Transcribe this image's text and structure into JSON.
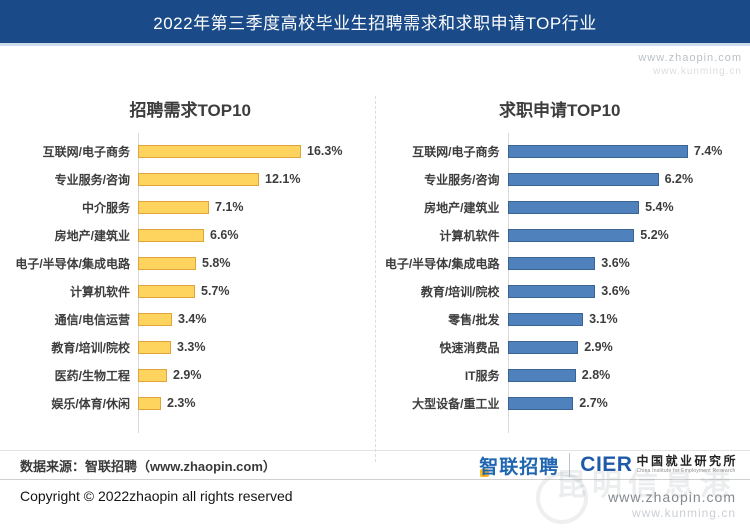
{
  "banner": {
    "title": "2022年第三季度高校毕业生招聘需求和求职申请TOP行业"
  },
  "chart_data": [
    {
      "type": "bar",
      "orientation": "horizontal",
      "title": "招聘需求TOP10",
      "categories": [
        "互联网/电子商务",
        "专业服务/咨询",
        "中介服务",
        "房地产/建筑业",
        "电子/半导体/集成电路",
        "计算机软件",
        "通信/电信运营",
        "教育/培训/院校",
        "医药/生物工程",
        "娱乐/体育/休闲"
      ],
      "values": [
        16.3,
        12.1,
        7.1,
        6.6,
        5.8,
        5.7,
        3.4,
        3.3,
        2.9,
        2.3
      ],
      "value_labels": [
        "16.3%",
        "12.1%",
        "7.1%",
        "6.6%",
        "5.8%",
        "5.7%",
        "3.4%",
        "3.3%",
        "2.9%",
        "2.3%"
      ],
      "unit": "%",
      "xlim": [
        0,
        17.5
      ],
      "grid": "off",
      "legend": "none",
      "bar_fill": "#FFD45E",
      "bar_border": "#DFA43C"
    },
    {
      "type": "bar",
      "orientation": "horizontal",
      "title": "求职申请TOP10",
      "categories": [
        "互联网/电子商务",
        "专业服务/咨询",
        "房地产/建筑业",
        "计算机软件",
        "电子/半导体/集成电路",
        "教育/培训/院校",
        "零售/批发",
        "快速消费品",
        "IT服务",
        "大型设备/重工业"
      ],
      "values": [
        7.4,
        6.2,
        5.4,
        5.2,
        3.6,
        3.6,
        3.1,
        2.9,
        2.8,
        2.7
      ],
      "value_labels": [
        "7.4%",
        "6.2%",
        "5.4%",
        "5.2%",
        "3.6%",
        "3.6%",
        "3.1%",
        "2.9%",
        "2.8%",
        "2.7%"
      ],
      "unit": "%",
      "xlim": [
        0,
        8
      ],
      "grid": "off",
      "legend": "none",
      "bar_fill": "#4F81BD",
      "bar_border": "#3A6494"
    }
  ],
  "footer": {
    "source": "数据来源：智联招聘（www.zhaopin.com）",
    "copyright": "Copyright © 2022zhaopin all rights reserved",
    "logos": {
      "zhaopin": "智联招聘",
      "cier_acronym": "CIER",
      "cier_name_cn": "中国就业研究所",
      "cier_name_en": "China Institute for Employment Research"
    }
  },
  "watermarks": {
    "top_url1": "www.zhaopin.com",
    "top_url2": "www.kunming.cn",
    "bottom_cjk": "昆明信息港",
    "bottom_url1": "www.zhaopin.com",
    "bottom_url2": "www.kunming.cn"
  },
  "colors": {
    "banner_bg": "#1A4A87",
    "bar_yellow": "#FFD45E",
    "bar_yellow_border": "#DFA43C",
    "bar_blue": "#4F81BD",
    "bar_blue_border": "#3A6494",
    "logo_blue": "#2066B0",
    "logo_yellow": "#FFB81C"
  }
}
